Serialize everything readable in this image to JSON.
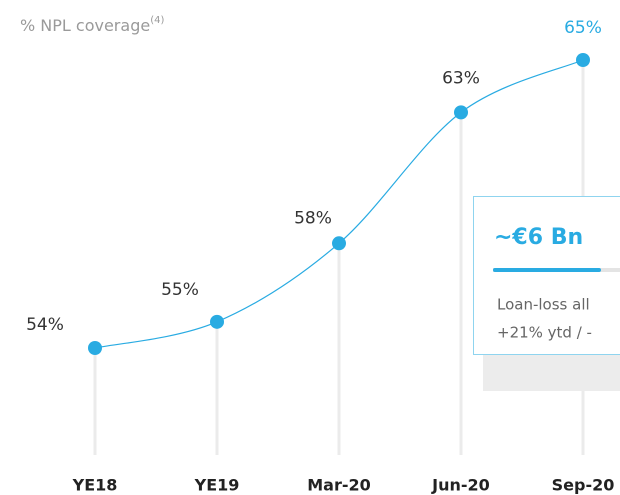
{
  "chart_data": {
    "type": "line",
    "title": "% NPL coverage",
    "title_note": "(4)",
    "categories": [
      "YE18",
      "YE19",
      "Mar-20",
      "Jun-20",
      "Sep-20"
    ],
    "values": [
      54,
      55,
      58,
      63,
      65
    ],
    "value_labels": [
      "54%",
      "55%",
      "58%",
      "63%",
      "65%"
    ],
    "value_label_colors": [
      "#333333",
      "#333333",
      "#333333",
      "#333333",
      "#29abe2"
    ],
    "color": "#29abe2",
    "annotation": {
      "headline": "~€6 Bn",
      "lines": [
        "Loan-loss all",
        "+21% ytd / -"
      ]
    }
  }
}
